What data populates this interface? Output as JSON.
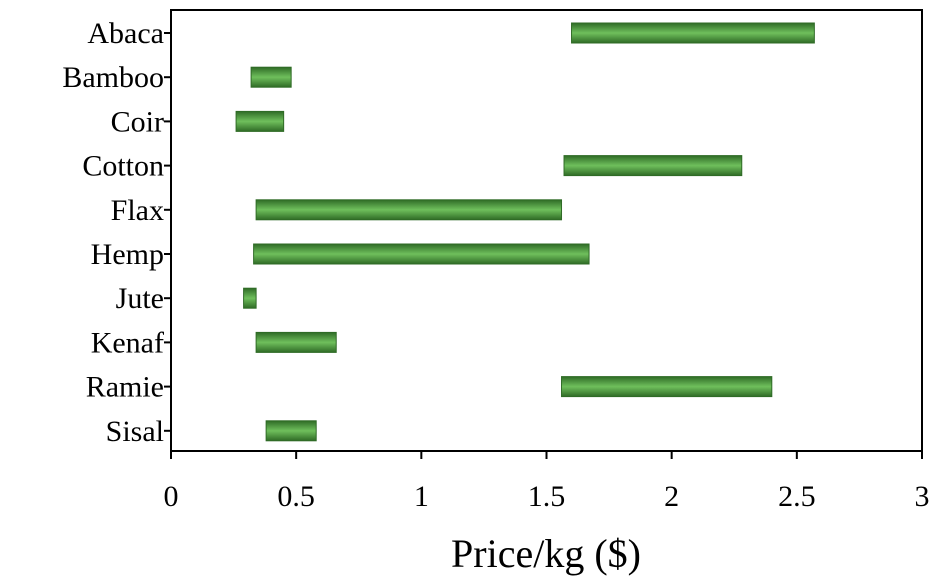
{
  "chart_data": {
    "type": "bar",
    "orientation": "horizontal-range",
    "title": "",
    "xlabel": "Price/kg ($)",
    "ylabel": "",
    "xlim": [
      0,
      3
    ],
    "x_ticks": [
      "0",
      "0.5",
      "1",
      "1.5",
      "2",
      "2.5",
      "3"
    ],
    "x_tick_values": [
      0,
      0.5,
      1,
      1.5,
      2,
      2.5,
      3
    ],
    "grid": false,
    "legend": "none",
    "bar_color": "#5aa04a",
    "bar_edge_color": "#2f6b26",
    "categories": [
      "Abaca",
      "Bamboo",
      "Coir",
      "Cotton",
      "Flax",
      "Hemp",
      "Jute",
      "Kenaf",
      "Ramie",
      "Sisal"
    ],
    "ranges": [
      [
        1.6,
        2.57
      ],
      [
        0.32,
        0.48
      ],
      [
        0.26,
        0.45
      ],
      [
        1.57,
        2.28
      ],
      [
        0.34,
        1.56
      ],
      [
        0.33,
        1.67
      ],
      [
        0.29,
        0.34
      ],
      [
        0.34,
        0.66
      ],
      [
        1.56,
        2.4
      ],
      [
        0.38,
        0.58
      ]
    ]
  }
}
